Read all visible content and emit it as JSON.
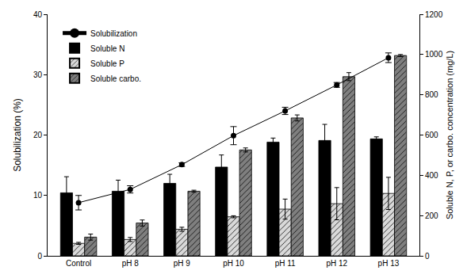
{
  "chart_data": {
    "type": "bar",
    "categories": [
      "Control",
      "pH 8",
      "pH 9",
      "pH 10",
      "pH 11",
      "pH 12",
      "pH 13"
    ],
    "y_label": "Solubilization (%)",
    "y2_label": "Soluble N, P, or carbo. concentration (mg/L)",
    "ylim": [
      0,
      40
    ],
    "yticks": [
      0,
      10,
      20,
      30,
      40
    ],
    "y2lim": [
      0,
      1200
    ],
    "y2ticks": [
      0,
      200,
      400,
      600,
      800,
      1000,
      1200
    ],
    "legend": "upper left",
    "grid": false,
    "series": [
      {
        "name": "Solubilization",
        "type": "line",
        "color": "#000000",
        "marker": "circle",
        "line_style": "solid",
        "values": [
          8.8,
          11.0,
          15.1,
          19.9,
          24.0,
          28.3,
          32.8
        ],
        "errors": [
          1.2,
          0.6,
          0.3,
          1.5,
          0.6,
          0.4,
          0.8
        ]
      },
      {
        "name": "Soluble N",
        "type": "bar",
        "axis": "y2",
        "color": "#000000",
        "marker": "solid",
        "values": [
          313,
          321,
          360,
          441,
          565,
          573,
          581
        ],
        "errors": [
          80,
          55,
          45,
          60,
          20,
          80,
          10
        ]
      },
      {
        "name": "Soluble P",
        "type": "bar",
        "axis": "y2",
        "color": "#d9d9d9",
        "marker": "hatch",
        "values": [
          62,
          81,
          132,
          194,
          232,
          259,
          310
        ],
        "errors": [
          5,
          10,
          10,
          5,
          50,
          80,
          80
        ]
      },
      {
        "name": "Soluble carbo.",
        "type": "bar",
        "axis": "y2",
        "color": "#7f7f7f",
        "marker": "hatch",
        "values": [
          93,
          163,
          321,
          526,
          685,
          890,
          995
        ],
        "errors": [
          15,
          15,
          5,
          10,
          15,
          20,
          5
        ]
      }
    ]
  }
}
